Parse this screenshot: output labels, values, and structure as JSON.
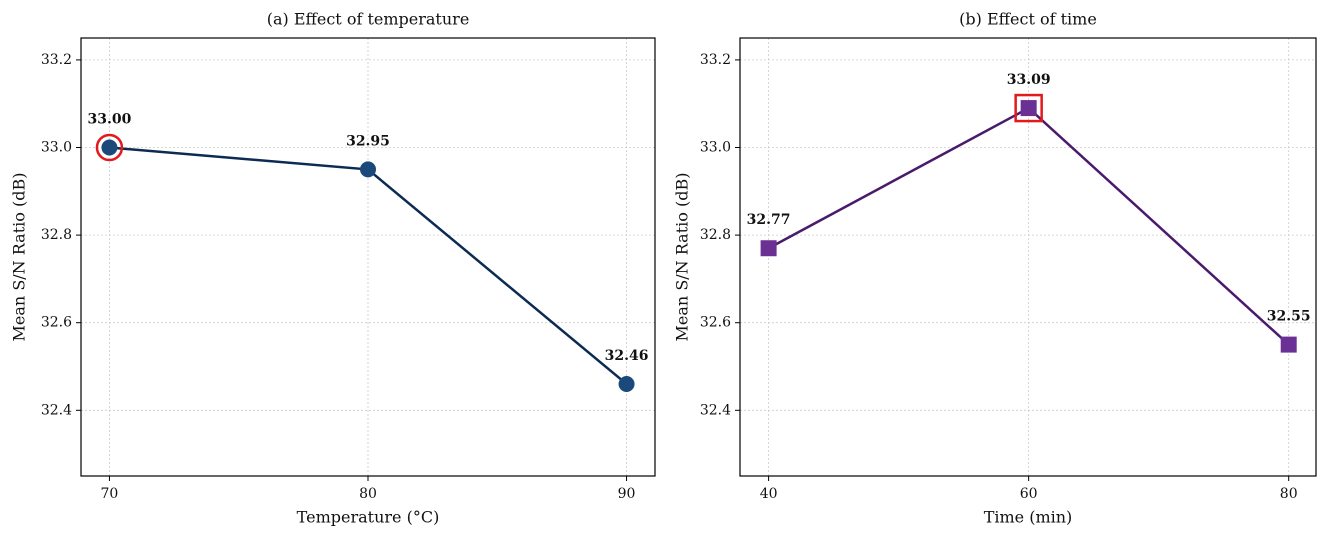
{
  "chart_data": [
    {
      "type": "line",
      "title": "(a) Effect of temperature",
      "xlabel": "Temperature (°C)",
      "ylabel": "Mean S/N Ratio (dB)",
      "x": [
        70,
        80,
        90
      ],
      "values": [
        33.0,
        32.95,
        32.46
      ],
      "value_labels": [
        "33.00",
        "32.95",
        "32.46"
      ],
      "marker": "circle",
      "line_color": "#0d2b52",
      "marker_color": "#1b4a7a",
      "highlight_color": "#e31a1c",
      "xlim": [
        68.9,
        91.1
      ],
      "xticks": [
        70,
        80,
        90
      ],
      "ylim": [
        32.25,
        33.25
      ],
      "yticks": [
        32.4,
        32.6,
        32.8,
        {
          "value": 33.0,
          "label": "33.0"
        },
        33.2
      ],
      "grid": true
    },
    {
      "type": "line",
      "title": "(b) Effect of time",
      "xlabel": "Time (min)",
      "ylabel": "Mean S/N Ratio (dB)",
      "x": [
        40,
        60,
        80
      ],
      "values": [
        32.77,
        33.09,
        32.55
      ],
      "marker": "square",
      "line_color": "#4a1a6b",
      "marker_color": "#6a3093",
      "highlight_color": "#e31a1c",
      "xlim": [
        37.8,
        82.1
      ],
      "xticks": [
        40,
        60,
        80
      ],
      "ylim": [
        32.25,
        33.25
      ],
      "yticks": [
        32.4,
        32.6,
        32.8,
        {
          "value": 33.0,
          "label": "33.0"
        },
        33.2
      ],
      "grid": true
    }
  ]
}
